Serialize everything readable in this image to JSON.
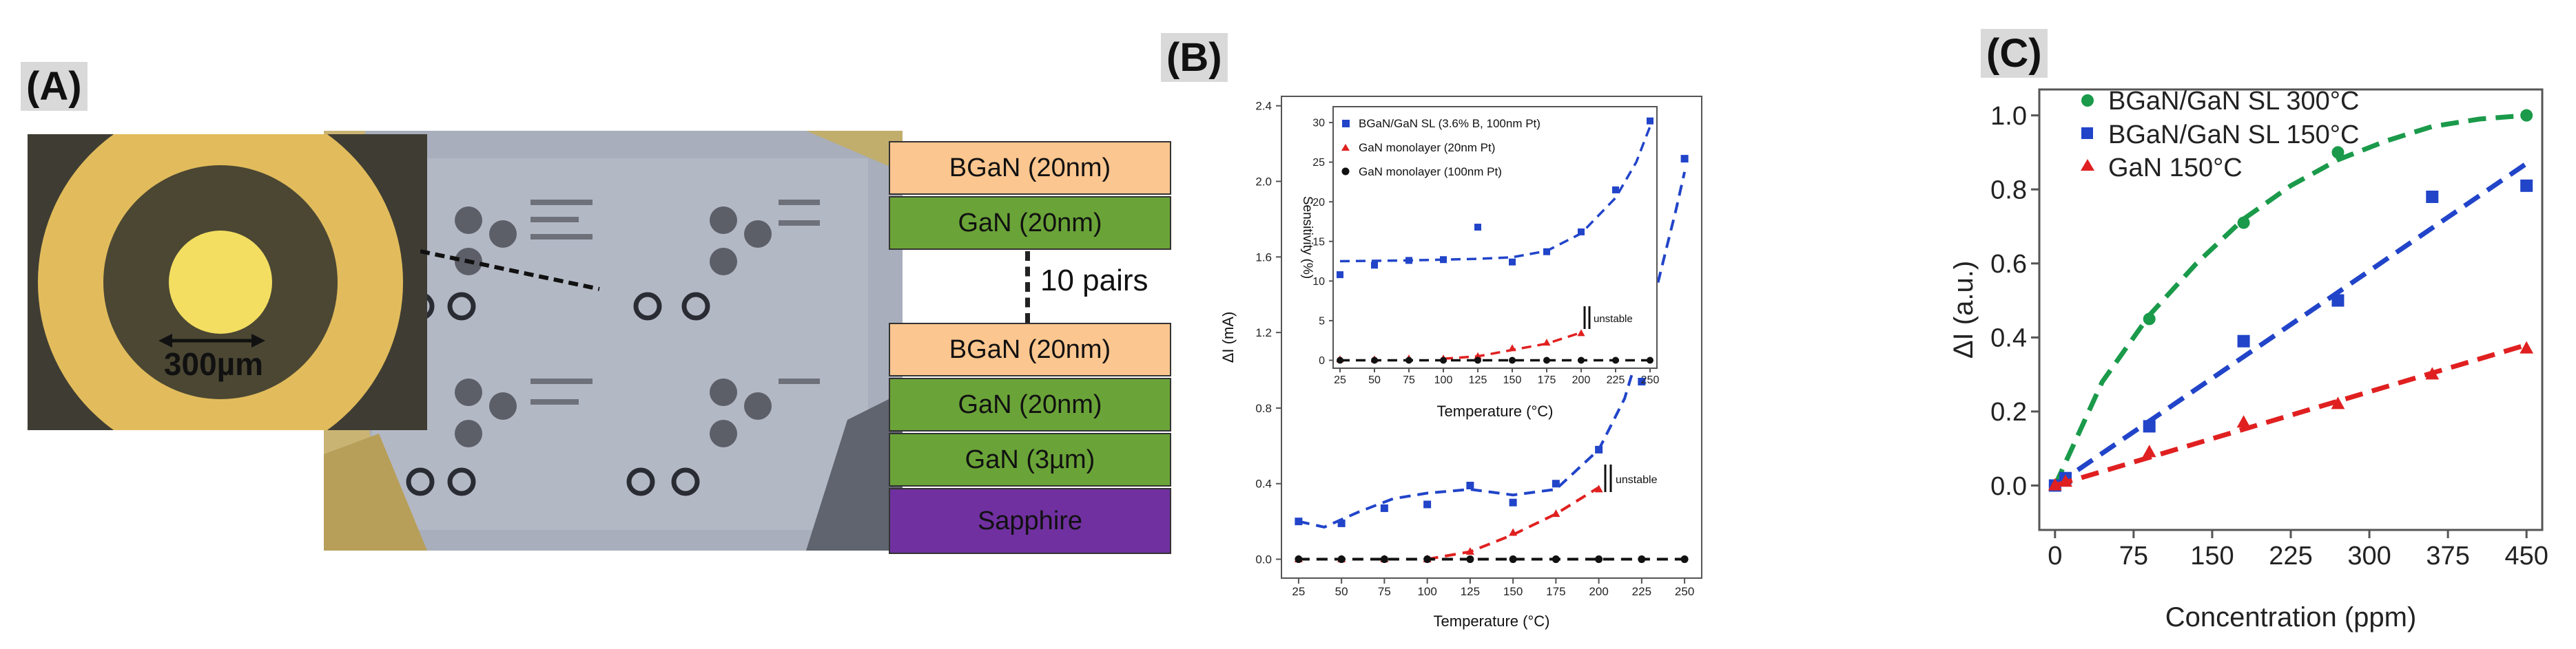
{
  "panel_labels": {
    "a": "(A)",
    "b": "(B)",
    "c": "(C)"
  },
  "panel_a": {
    "scale_label": "300µm",
    "pairs_label": "10 pairs",
    "layers_top": [
      {
        "label": "BGaN (20nm)",
        "color": "#fbc68f"
      },
      {
        "label": "GaN (20nm)",
        "color": "#6aa438"
      }
    ],
    "layers_bottom": [
      {
        "label": "BGaN (20nm)",
        "color": "#fbc68f"
      },
      {
        "label": "GaN (20nm)",
        "color": "#6aa438"
      },
      {
        "label": "GaN (3µm)",
        "color": "#6aa438"
      },
      {
        "label": "Sapphire",
        "color": "#7030a0"
      }
    ]
  },
  "chart_data": [
    {
      "type": "scatter",
      "id": "B-main",
      "xlabel": "Temperature (°C)",
      "ylabel": "ΔI (mA)",
      "xlim": [
        15,
        260
      ],
      "ylim": [
        -0.1,
        2.45
      ],
      "xticks": [
        25,
        50,
        75,
        100,
        125,
        150,
        175,
        200,
        225,
        250
      ],
      "yticks": [
        0.0,
        0.4,
        0.8,
        1.2,
        1.6,
        2.0,
        2.4
      ],
      "ytick_labels": [
        "0.0",
        "0.4",
        "0.8",
        "1.2",
        "1.6",
        "2.0",
        "2.4"
      ],
      "annotation": "unstable",
      "series": [
        {
          "name": "BGaN/GaN SL (3.6% B, 100nm Pt)",
          "color": "#2144c9",
          "marker": "square",
          "x": [
            25,
            50,
            75,
            100,
            125,
            150,
            175,
            200,
            225,
            250
          ],
          "y": [
            0.2,
            0.19,
            0.27,
            0.29,
            0.39,
            0.3,
            0.4,
            0.58,
            0.94,
            2.12
          ],
          "fit_x": [
            25,
            40,
            60,
            80,
            100,
            125,
            150,
            175,
            200,
            215,
            230,
            245,
            250
          ],
          "fit_y": [
            0.2,
            0.17,
            0.25,
            0.32,
            0.35,
            0.37,
            0.34,
            0.37,
            0.58,
            0.85,
            1.3,
            1.85,
            2.05
          ]
        },
        {
          "name": "GaN monolayer (20nm Pt)",
          "color": "#e02020",
          "marker": "triangle",
          "x": [
            25,
            50,
            75,
            100,
            125,
            150,
            175,
            200
          ],
          "y": [
            0.0,
            0.0,
            0.0,
            0.0,
            0.04,
            0.14,
            0.24,
            0.37
          ],
          "fit_x": [
            100,
            125,
            150,
            175,
            200
          ],
          "fit_y": [
            0.0,
            0.04,
            0.13,
            0.24,
            0.38
          ]
        },
        {
          "name": "GaN monolayer (100nm Pt)",
          "color": "#111111",
          "marker": "circle",
          "x": [
            25,
            50,
            75,
            100,
            125,
            150,
            175,
            200,
            225,
            250
          ],
          "y": [
            0,
            0,
            0,
            0,
            0,
            0,
            0,
            0,
            0,
            0
          ],
          "fit_x": [
            25,
            250
          ],
          "fit_y": [
            0,
            0
          ]
        }
      ]
    },
    {
      "type": "scatter",
      "id": "B-inset",
      "xlabel": "Temperature (°C)",
      "ylabel": "Sensitivity (%)",
      "xlim": [
        20,
        255
      ],
      "ylim": [
        -1,
        32
      ],
      "xticks": [
        25,
        50,
        75,
        100,
        125,
        150,
        175,
        200,
        225,
        250
      ],
      "yticks": [
        0,
        5,
        10,
        15,
        20,
        25,
        30
      ],
      "annotation": "unstable",
      "legend": [
        "BGaN/GaN SL (3.6% B, 100nm Pt)",
        "GaN monolayer (20nm Pt)",
        "GaN monolayer (100nm Pt)"
      ],
      "series": [
        {
          "name": "BGaN/GaN SL (3.6% B, 100nm Pt)",
          "color": "#2144c9",
          "marker": "square",
          "x": [
            25,
            50,
            75,
            100,
            125,
            150,
            175,
            200,
            225,
            250
          ],
          "y": [
            10.8,
            12.0,
            12.6,
            12.7,
            16.8,
            12.4,
            13.7,
            16.2,
            21.5,
            30.2
          ],
          "fit_x": [
            25,
            75,
            125,
            150,
            175,
            200,
            225,
            240,
            250
          ],
          "fit_y": [
            12.5,
            12.6,
            12.8,
            13.0,
            13.8,
            16.0,
            20.5,
            25.0,
            29.5
          ]
        },
        {
          "name": "GaN monolayer (20nm Pt)",
          "color": "#e02020",
          "marker": "triangle",
          "x": [
            25,
            50,
            75,
            100,
            125,
            150,
            175,
            200
          ],
          "y": [
            0.1,
            0.1,
            0.2,
            0.2,
            0.5,
            1.5,
            2.2,
            3.4
          ],
          "fit_x": [
            100,
            125,
            150,
            175,
            200
          ],
          "fit_y": [
            0.2,
            0.5,
            1.3,
            2.1,
            3.5
          ]
        },
        {
          "name": "GaN monolayer (100nm Pt)",
          "color": "#111111",
          "marker": "circle",
          "x": [
            25,
            50,
            75,
            100,
            125,
            150,
            175,
            200,
            225,
            250
          ],
          "y": [
            0,
            0,
            0,
            0,
            0,
            0,
            0,
            0,
            0,
            0
          ],
          "fit_x": [
            25,
            250
          ],
          "fit_y": [
            0,
            0
          ]
        }
      ]
    },
    {
      "type": "scatter",
      "id": "C",
      "xlabel": "Concentration (ppm)",
      "ylabel": "ΔI (a.u.)",
      "xlim": [
        -15,
        465
      ],
      "ylim": [
        -0.12,
        1.07
      ],
      "xticks": [
        0,
        75,
        150,
        225,
        300,
        375,
        450
      ],
      "yticks": [
        0.0,
        0.2,
        0.4,
        0.6,
        0.8,
        1.0
      ],
      "ytick_labels": [
        "0.0",
        "0.2",
        "0.4",
        "0.6",
        "0.8",
        "1.0"
      ],
      "legend_position": "top-left",
      "series": [
        {
          "name": "BGaN/GaN SL 300°C",
          "color": "#1a9a4a",
          "marker": "circle",
          "x": [
            0,
            10,
            90,
            180,
            270,
            450
          ],
          "y": [
            0.0,
            0.02,
            0.45,
            0.71,
            0.9,
            1.0
          ],
          "fit_x": [
            0,
            45,
            90,
            135,
            180,
            225,
            270,
            315,
            360,
            405,
            450
          ],
          "fit_y": [
            0.0,
            0.28,
            0.46,
            0.6,
            0.72,
            0.81,
            0.88,
            0.93,
            0.97,
            0.99,
            1.0
          ]
        },
        {
          "name": "BGaN/GaN SL 150°C",
          "color": "#2144c9",
          "marker": "square",
          "x": [
            0,
            10,
            90,
            180,
            270,
            360,
            450
          ],
          "y": [
            0.0,
            0.02,
            0.16,
            0.39,
            0.5,
            0.78,
            0.81
          ],
          "fit_x": [
            0,
            450
          ],
          "fit_y": [
            0.0,
            0.87
          ]
        },
        {
          "name": "GaN 150°C",
          "color": "#e02020",
          "marker": "triangle",
          "x": [
            0,
            10,
            90,
            180,
            270,
            360,
            450
          ],
          "y": [
            0.0,
            0.01,
            0.09,
            0.17,
            0.22,
            0.3,
            0.37
          ],
          "fit_x": [
            0,
            450
          ],
          "fit_y": [
            0.0,
            0.38
          ]
        }
      ]
    }
  ]
}
